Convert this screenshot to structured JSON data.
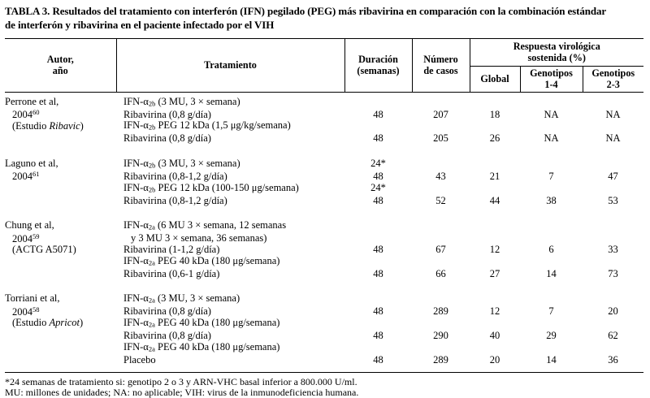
{
  "colors": {
    "text": "#000000",
    "background": "#ffffff",
    "rules": "#000000"
  },
  "title": {
    "lines": [
      "TABLA 3. Resultados del tratamiento con interferón (IFN) pegilado (PEG) más ribavirina en comparación con la combinación estándar",
      "de interferón y ribavirina en el paciente infectado por el VIH"
    ]
  },
  "header": {
    "author_line1": "Autor,",
    "author_line2": "año",
    "treatment": "Tratamiento",
    "duration_line1": "Duración",
    "duration_line2": "(semanas)",
    "cases_line1": "Número",
    "cases_line2": "de casos",
    "svr_line1": "Respuesta virológica",
    "svr_line2": "sostenida (%)",
    "global": "Global",
    "g14_line1": "Genotipos",
    "g14_line2": "1-4",
    "g23_line1": "Genotipos",
    "g23_line2": "2-3"
  },
  "groups": [
    {
      "author": [
        {
          "ind": false,
          "segs": [
            {
              "t": "Perrone et al,"
            }
          ]
        },
        {
          "ind": true,
          "segs": [
            {
              "t": "2004"
            },
            {
              "t": "60",
              "s": "sup"
            }
          ]
        },
        {
          "ind": true,
          "segs": [
            {
              "t": "(Estudio "
            },
            {
              "t": "Ribavic",
              "s": "i"
            },
            {
              "t": ")"
            }
          ]
        }
      ],
      "rows": [
        {
          "t": [
            {
              "t": "IFN-α"
            },
            {
              "t": "2b",
              "s": "sub"
            },
            {
              "t": " (3 MU, 3 × semana)"
            }
          ]
        },
        {
          "t": [
            {
              "t": "Ribavirina (0,8 g/día)"
            }
          ],
          "dur": "48",
          "n": "207",
          "g": "18",
          "g14": "NA",
          "g23": "NA"
        },
        {
          "t": [
            {
              "t": "IFN-α"
            },
            {
              "t": "2b",
              "s": "sub"
            },
            {
              "t": " PEG 12 kDa (1,5 μg/kg/semana)"
            }
          ]
        },
        {
          "t": [
            {
              "t": "Ribavirina (0,8 g/día)"
            }
          ],
          "dur": "48",
          "n": "205",
          "g": "26",
          "g14": "NA",
          "g23": "NA"
        }
      ]
    },
    {
      "author": [
        {
          "ind": false,
          "segs": [
            {
              "t": "Laguno et al,"
            }
          ]
        },
        {
          "ind": true,
          "segs": [
            {
              "t": "2004"
            },
            {
              "t": "61",
              "s": "sup"
            }
          ]
        }
      ],
      "rows": [
        {
          "t": [
            {
              "t": "IFN-α"
            },
            {
              "t": "2b",
              "s": "sub"
            },
            {
              "t": " (3 MU, 3 × semana)"
            }
          ],
          "dur": "24*"
        },
        {
          "t": [
            {
              "t": "Ribavirina (0,8-1,2 g/día)"
            }
          ],
          "dur": "48",
          "n": "43",
          "g": "21",
          "g14": "7",
          "g23": "47"
        },
        {
          "t": [
            {
              "t": "IFN-α"
            },
            {
              "t": "2b",
              "s": "sub"
            },
            {
              "t": " PEG 12 kDa (100-150 μg/semana)"
            }
          ],
          "dur": "24*"
        },
        {
          "t": [
            {
              "t": "Ribavirina (0,8-1,2 g/día)"
            }
          ],
          "dur": "48",
          "n": "52",
          "g": "44",
          "g14": "38",
          "g23": "53"
        }
      ]
    },
    {
      "author": [
        {
          "ind": false,
          "segs": [
            {
              "t": "Chung et al,"
            }
          ]
        },
        {
          "ind": true,
          "segs": [
            {
              "t": "2004"
            },
            {
              "t": "59",
              "s": "sup"
            }
          ]
        },
        {
          "ind": true,
          "segs": [
            {
              "t": "(ACTG A5071)"
            }
          ]
        }
      ],
      "rows": [
        {
          "t": [
            {
              "t": "IFN-α"
            },
            {
              "t": "2a",
              "s": "sub"
            },
            {
              "t": " (6 MU 3 × semana, 12 semanas"
            }
          ]
        },
        {
          "t": [
            {
              "t": "y 3 MU 3 × semana, 36 semanas)"
            }
          ],
          "ind": true
        },
        {
          "t": [
            {
              "t": "Ribavirina (1-1,2 g/día)"
            }
          ],
          "dur": "48",
          "n": "67",
          "g": "12",
          "g14": "6",
          "g23": "33"
        },
        {
          "t": [
            {
              "t": "IFN-α"
            },
            {
              "t": "2a",
              "s": "sub"
            },
            {
              "t": " PEG 40 kDa (180 μg/semana)"
            }
          ]
        },
        {
          "t": [
            {
              "t": "Ribavirina (0,6-1 g/día)"
            }
          ],
          "dur": "48",
          "n": "66",
          "g": "27",
          "g14": "14",
          "g23": "73"
        }
      ]
    },
    {
      "author": [
        {
          "ind": false,
          "segs": [
            {
              "t": "Torriani et al,"
            }
          ]
        },
        {
          "ind": true,
          "segs": [
            {
              "t": "2004"
            },
            {
              "t": "58",
              "s": "sup"
            }
          ]
        },
        {
          "ind": true,
          "segs": [
            {
              "t": "(Estudio "
            },
            {
              "t": "Apricot",
              "s": "i"
            },
            {
              "t": ")"
            }
          ]
        }
      ],
      "rows": [
        {
          "t": [
            {
              "t": "IFN-α"
            },
            {
              "t": "2a",
              "s": "sub"
            },
            {
              "t": " (3 MU, 3 × semana)"
            }
          ]
        },
        {
          "t": [
            {
              "t": "Ribavirina (0,8 g/día)"
            }
          ],
          "dur": "48",
          "n": "289",
          "g": "12",
          "g14": "7",
          "g23": "20"
        },
        {
          "t": [
            {
              "t": "IFN-α"
            },
            {
              "t": "2a",
              "s": "sub"
            },
            {
              "t": " PEG 40 kDa (180 μg/semana)"
            }
          ]
        },
        {
          "t": [
            {
              "t": "Ribavirina (0,8 g/día)"
            }
          ],
          "dur": "48",
          "n": "290",
          "g": "40",
          "g14": "29",
          "g23": "62"
        },
        {
          "t": [
            {
              "t": "IFN-α"
            },
            {
              "t": "2a",
              "s": "sub"
            },
            {
              "t": " PEG 40 kDa (180 μg/semana)"
            }
          ]
        },
        {
          "t": [
            {
              "t": "Placebo"
            }
          ],
          "dur": "48",
          "n": "289",
          "g": "20",
          "g14": "14",
          "g23": "36"
        }
      ]
    }
  ],
  "footnotes": [
    "*24 semanas de tratamiento si: genotipo 2 o 3 y ARN-VHC basal inferior a 800.000 U/ml.",
    "MU: millones de unidades; NA: no aplicable; VIH: virus de la inmunodeficiencia humana."
  ]
}
